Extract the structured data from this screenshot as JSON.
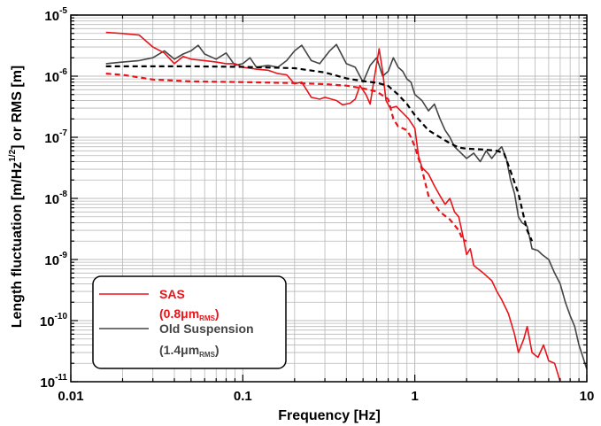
{
  "chart_data": {
    "type": "line",
    "xlabel": "Frequency [Hz]",
    "ylabel_main": "Length fluctuation [m/Hz",
    "ylabel_sup": "1/2",
    "ylabel_tail": "] or RMS [m]",
    "xscale": "log",
    "yscale": "log",
    "xlim": [
      0.01,
      10
    ],
    "ylim": [
      1e-11,
      1e-05
    ],
    "grid": true,
    "legend_position": "bottom-left",
    "x_ticks": [
      {
        "value": 0.01,
        "label": "0.01"
      },
      {
        "value": 0.1,
        "label": "0.1"
      },
      {
        "value": 1,
        "label": "1"
      },
      {
        "value": 10,
        "label": "10"
      }
    ],
    "y_ticks": [
      {
        "value": 1e-11,
        "base": "10",
        "exp": "-11"
      },
      {
        "value": 1e-10,
        "base": "10",
        "exp": "-10"
      },
      {
        "value": 1e-09,
        "base": "10",
        "exp": "-9"
      },
      {
        "value": 1e-08,
        "base": "10",
        "exp": "-8"
      },
      {
        "value": 1e-07,
        "base": "10",
        "exp": "-7"
      },
      {
        "value": 1e-06,
        "base": "10",
        "exp": "-6"
      },
      {
        "value": 1e-05,
        "base": "10",
        "exp": "-5"
      }
    ],
    "legend": [
      {
        "label": "SAS",
        "rms_prefix": "(0.8",
        "rms_unit": "μm",
        "rms_sub": "RMS",
        "rms_suffix": ")",
        "color": "#e8141a"
      },
      {
        "label": "Old Suspension",
        "rms_prefix": "(1.4",
        "rms_unit": "μm",
        "rms_sub": "RMS",
        "rms_suffix": ")",
        "color": "#444444"
      }
    ],
    "series": [
      {
        "name": "SAS",
        "style": "solid",
        "color": "#e8141a",
        "points": [
          [
            0.016,
            5.2e-06
          ],
          [
            0.02,
            5e-06
          ],
          [
            0.025,
            4.7e-06
          ],
          [
            0.03,
            3e-06
          ],
          [
            0.035,
            2.4e-06
          ],
          [
            0.04,
            1.6e-06
          ],
          [
            0.045,
            2.1e-06
          ],
          [
            0.05,
            1.9e-06
          ],
          [
            0.06,
            1.8e-06
          ],
          [
            0.07,
            1.7e-06
          ],
          [
            0.08,
            1.6e-06
          ],
          [
            0.09,
            1.6e-06
          ],
          [
            0.1,
            1.4e-06
          ],
          [
            0.12,
            1.3e-06
          ],
          [
            0.14,
            1.25e-06
          ],
          [
            0.16,
            1.1e-06
          ],
          [
            0.18,
            1.05e-06
          ],
          [
            0.2,
            7.5e-07
          ],
          [
            0.22,
            8e-07
          ],
          [
            0.25,
            4.5e-07
          ],
          [
            0.28,
            4.2e-07
          ],
          [
            0.3,
            4.5e-07
          ],
          [
            0.35,
            4e-07
          ],
          [
            0.38,
            3.4e-07
          ],
          [
            0.42,
            3.6e-07
          ],
          [
            0.45,
            4.2e-07
          ],
          [
            0.48,
            7e-07
          ],
          [
            0.52,
            5e-07
          ],
          [
            0.55,
            3.5e-07
          ],
          [
            0.58,
            9e-07
          ],
          [
            0.62,
            2.8e-06
          ],
          [
            0.65,
            1.2e-06
          ],
          [
            0.68,
            4e-07
          ],
          [
            0.72,
            3e-07
          ],
          [
            0.78,
            3.2e-07
          ],
          [
            0.85,
            2.5e-07
          ],
          [
            0.92,
            2e-07
          ],
          [
            1.0,
            1.4e-07
          ],
          [
            1.05,
            5e-08
          ],
          [
            1.1,
            3.2e-08
          ],
          [
            1.2,
            2.5e-08
          ],
          [
            1.3,
            1.6e-08
          ],
          [
            1.4,
            1.1e-08
          ],
          [
            1.5,
            8e-09
          ],
          [
            1.6,
            1e-08
          ],
          [
            1.7,
            6e-09
          ],
          [
            1.8,
            5e-09
          ],
          [
            1.9,
            2.5e-09
          ],
          [
            2.0,
            1.2e-09
          ],
          [
            2.1,
            1.5e-09
          ],
          [
            2.2,
            8e-10
          ],
          [
            2.5,
            6e-10
          ],
          [
            2.8,
            4.5e-10
          ],
          [
            3.0,
            3e-10
          ],
          [
            3.2,
            2.2e-10
          ],
          [
            3.5,
            1.3e-10
          ],
          [
            3.8,
            6e-11
          ],
          [
            4.0,
            3e-11
          ],
          [
            4.3,
            5e-11
          ],
          [
            4.5,
            8e-11
          ],
          [
            4.8,
            3e-11
          ],
          [
            5.2,
            2.5e-11
          ],
          [
            5.6,
            4e-11
          ],
          [
            6.0,
            2.2e-11
          ],
          [
            6.5,
            2e-11
          ],
          [
            7.0,
            1e-11
          ]
        ]
      },
      {
        "name": "SAS RMS",
        "style": "dashed",
        "color": "#e8141a",
        "points": [
          [
            0.016,
            1.1e-06
          ],
          [
            0.02,
            1.05e-06
          ],
          [
            0.03,
            8.8e-07
          ],
          [
            0.05,
            8.2e-07
          ],
          [
            0.1,
            8e-07
          ],
          [
            0.2,
            7.7e-07
          ],
          [
            0.3,
            7.4e-07
          ],
          [
            0.4,
            7e-07
          ],
          [
            0.5,
            6.3e-07
          ],
          [
            0.6,
            5.6e-07
          ],
          [
            0.7,
            4.2e-07
          ],
          [
            0.75,
            2e-07
          ],
          [
            0.8,
            1.5e-07
          ],
          [
            0.85,
            1.4e-07
          ],
          [
            0.9,
            1.3e-07
          ],
          [
            0.95,
            1e-07
          ],
          [
            1.0,
            7e-08
          ],
          [
            1.1,
            3e-08
          ],
          [
            1.2,
            1.1e-08
          ],
          [
            1.4,
            6e-09
          ],
          [
            1.6,
            4.5e-09
          ],
          [
            1.8,
            3e-09
          ],
          [
            1.9,
            2.1e-09
          ],
          [
            2.0,
            2e-09
          ]
        ]
      },
      {
        "name": "Old Suspension",
        "style": "solid",
        "color": "#444444",
        "points": [
          [
            0.016,
            1.6e-06
          ],
          [
            0.02,
            1.7e-06
          ],
          [
            0.025,
            1.8e-06
          ],
          [
            0.03,
            2e-06
          ],
          [
            0.035,
            2.6e-06
          ],
          [
            0.04,
            1.9e-06
          ],
          [
            0.045,
            2.3e-06
          ],
          [
            0.05,
            2.6e-06
          ],
          [
            0.055,
            3.2e-06
          ],
          [
            0.06,
            2.3e-06
          ],
          [
            0.07,
            1.9e-06
          ],
          [
            0.08,
            2.4e-06
          ],
          [
            0.09,
            1.5e-06
          ],
          [
            0.1,
            1.6e-06
          ],
          [
            0.11,
            2e-06
          ],
          [
            0.12,
            1.4e-06
          ],
          [
            0.14,
            1.5e-06
          ],
          [
            0.16,
            1.4e-06
          ],
          [
            0.18,
            1.8e-06
          ],
          [
            0.2,
            2.6e-06
          ],
          [
            0.22,
            3.2e-06
          ],
          [
            0.25,
            1.8e-06
          ],
          [
            0.28,
            1.6e-06
          ],
          [
            0.32,
            2.6e-06
          ],
          [
            0.35,
            3.3e-06
          ],
          [
            0.4,
            1.6e-06
          ],
          [
            0.45,
            1.4e-06
          ],
          [
            0.5,
            8e-07
          ],
          [
            0.55,
            1.5e-06
          ],
          [
            0.6,
            2e-06
          ],
          [
            0.65,
            1e-06
          ],
          [
            0.7,
            1.2e-06
          ],
          [
            0.75,
            2e-06
          ],
          [
            0.8,
            1.4e-06
          ],
          [
            0.85,
            1.2e-06
          ],
          [
            0.9,
            9e-07
          ],
          [
            0.95,
            8e-07
          ],
          [
            1.0,
            5e-07
          ],
          [
            1.1,
            4e-07
          ],
          [
            1.2,
            2.7e-07
          ],
          [
            1.3,
            3.5e-07
          ],
          [
            1.4,
            2e-07
          ],
          [
            1.5,
            1.3e-07
          ],
          [
            1.6,
            1e-07
          ],
          [
            1.7,
            7e-08
          ],
          [
            1.8,
            6e-08
          ],
          [
            2.0,
            4.5e-08
          ],
          [
            2.2,
            5.5e-08
          ],
          [
            2.4,
            4e-08
          ],
          [
            2.6,
            6e-08
          ],
          [
            2.8,
            4.5e-08
          ],
          [
            3.0,
            5.8e-08
          ],
          [
            3.2,
            7e-08
          ],
          [
            3.4,
            4.5e-08
          ],
          [
            3.6,
            2e-08
          ],
          [
            3.8,
            1.2e-08
          ],
          [
            4.0,
            5e-09
          ],
          [
            4.2,
            4e-09
          ],
          [
            4.5,
            3.5e-09
          ],
          [
            4.8,
            1.5e-09
          ],
          [
            5.2,
            1.4e-09
          ],
          [
            5.5,
            1.2e-09
          ],
          [
            6.0,
            1e-09
          ],
          [
            6.5,
            6e-10
          ],
          [
            7.0,
            4e-10
          ],
          [
            7.5,
            2e-10
          ],
          [
            8.0,
            1.2e-10
          ],
          [
            8.5,
            8e-11
          ],
          [
            9.0,
            4e-11
          ],
          [
            9.5,
            2.5e-11
          ],
          [
            10.0,
            1.6e-11
          ]
        ]
      },
      {
        "name": "Old Suspension RMS",
        "style": "dashed",
        "color": "#000000",
        "points": [
          [
            0.016,
            1.45e-06
          ],
          [
            0.02,
            1.45e-06
          ],
          [
            0.05,
            1.45e-06
          ],
          [
            0.1,
            1.42e-06
          ],
          [
            0.2,
            1.35e-06
          ],
          [
            0.3,
            1.15e-06
          ],
          [
            0.4,
            9.2e-07
          ],
          [
            0.5,
            8.3e-07
          ],
          [
            0.6,
            7.8e-07
          ],
          [
            0.7,
            6.9e-07
          ],
          [
            0.8,
            5e-07
          ],
          [
            0.9,
            3.5e-07
          ],
          [
            1.0,
            2.3e-07
          ],
          [
            1.2,
            1.3e-07
          ],
          [
            1.4,
            1e-07
          ],
          [
            1.6,
            8e-08
          ],
          [
            1.8,
            6.8e-08
          ],
          [
            2.0,
            6.5e-08
          ],
          [
            2.5,
            6.3e-08
          ],
          [
            3.0,
            6e-08
          ],
          [
            3.3,
            5.5e-08
          ],
          [
            3.6,
            2.8e-08
          ],
          [
            4.0,
            1.2e-08
          ],
          [
            4.3,
            5e-09
          ],
          [
            4.5,
            3e-09
          ],
          [
            4.8,
            2e-09
          ]
        ]
      }
    ]
  }
}
